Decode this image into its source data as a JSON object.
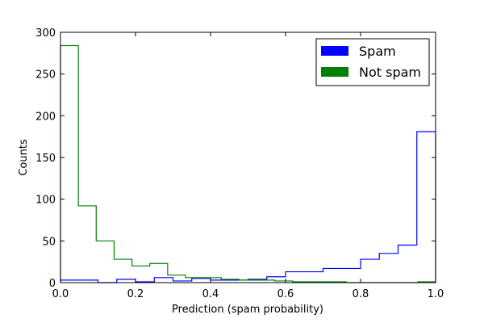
{
  "chart_data": {
    "type": "histogram",
    "title": "",
    "xlabel": "Prediction (spam probability)",
    "ylabel": "Counts",
    "xlim": [
      0.0,
      1.0
    ],
    "ylim": [
      0,
      300
    ],
    "xticks": [
      "0.0",
      "0.2",
      "0.4",
      "0.6",
      "0.8",
      "1.0"
    ],
    "yticks": [
      "0",
      "50",
      "100",
      "150",
      "200",
      "250",
      "300"
    ],
    "bin_edges": [
      0.0,
      0.05,
      0.1,
      0.15,
      0.2,
      0.25,
      0.3,
      0.35,
      0.4,
      0.45,
      0.5,
      0.55,
      0.6,
      0.65,
      0.7,
      0.75,
      0.8,
      0.85,
      0.9,
      0.95,
      1.0
    ],
    "grid": false,
    "legend_position": "top-right",
    "series": [
      {
        "name": "Spam",
        "color": "#0000ff",
        "style": "step",
        "bin_edges": [
          0.0,
          0.05,
          0.1,
          0.15,
          0.2,
          0.25,
          0.3,
          0.35,
          0.4,
          0.45,
          0.5,
          0.55,
          0.6,
          0.65,
          0.7,
          0.75,
          0.8,
          0.85,
          0.9,
          0.95,
          1.0
        ],
        "values": [
          3,
          3,
          0,
          4,
          1,
          6,
          2,
          5,
          3,
          3,
          4,
          7,
          13,
          13,
          17,
          17,
          28,
          35,
          45,
          181
        ]
      },
      {
        "name": "Not spam",
        "color": "#008000",
        "style": "step",
        "bin_edges": [
          0.0,
          0.0476,
          0.0952,
          0.1429,
          0.1905,
          0.2381,
          0.2857,
          0.3333,
          0.381,
          0.4286,
          0.4762,
          0.5238,
          0.5714,
          0.619,
          0.6667,
          0.7143,
          0.7619,
          0.8095,
          0.8571,
          0.9048,
          0.9524,
          1.0
        ],
        "values": [
          284,
          92,
          50,
          28,
          20,
          23,
          9,
          6,
          6,
          4,
          3,
          3,
          2,
          1,
          1,
          1,
          0,
          0,
          0,
          0,
          1
        ]
      }
    ]
  }
}
